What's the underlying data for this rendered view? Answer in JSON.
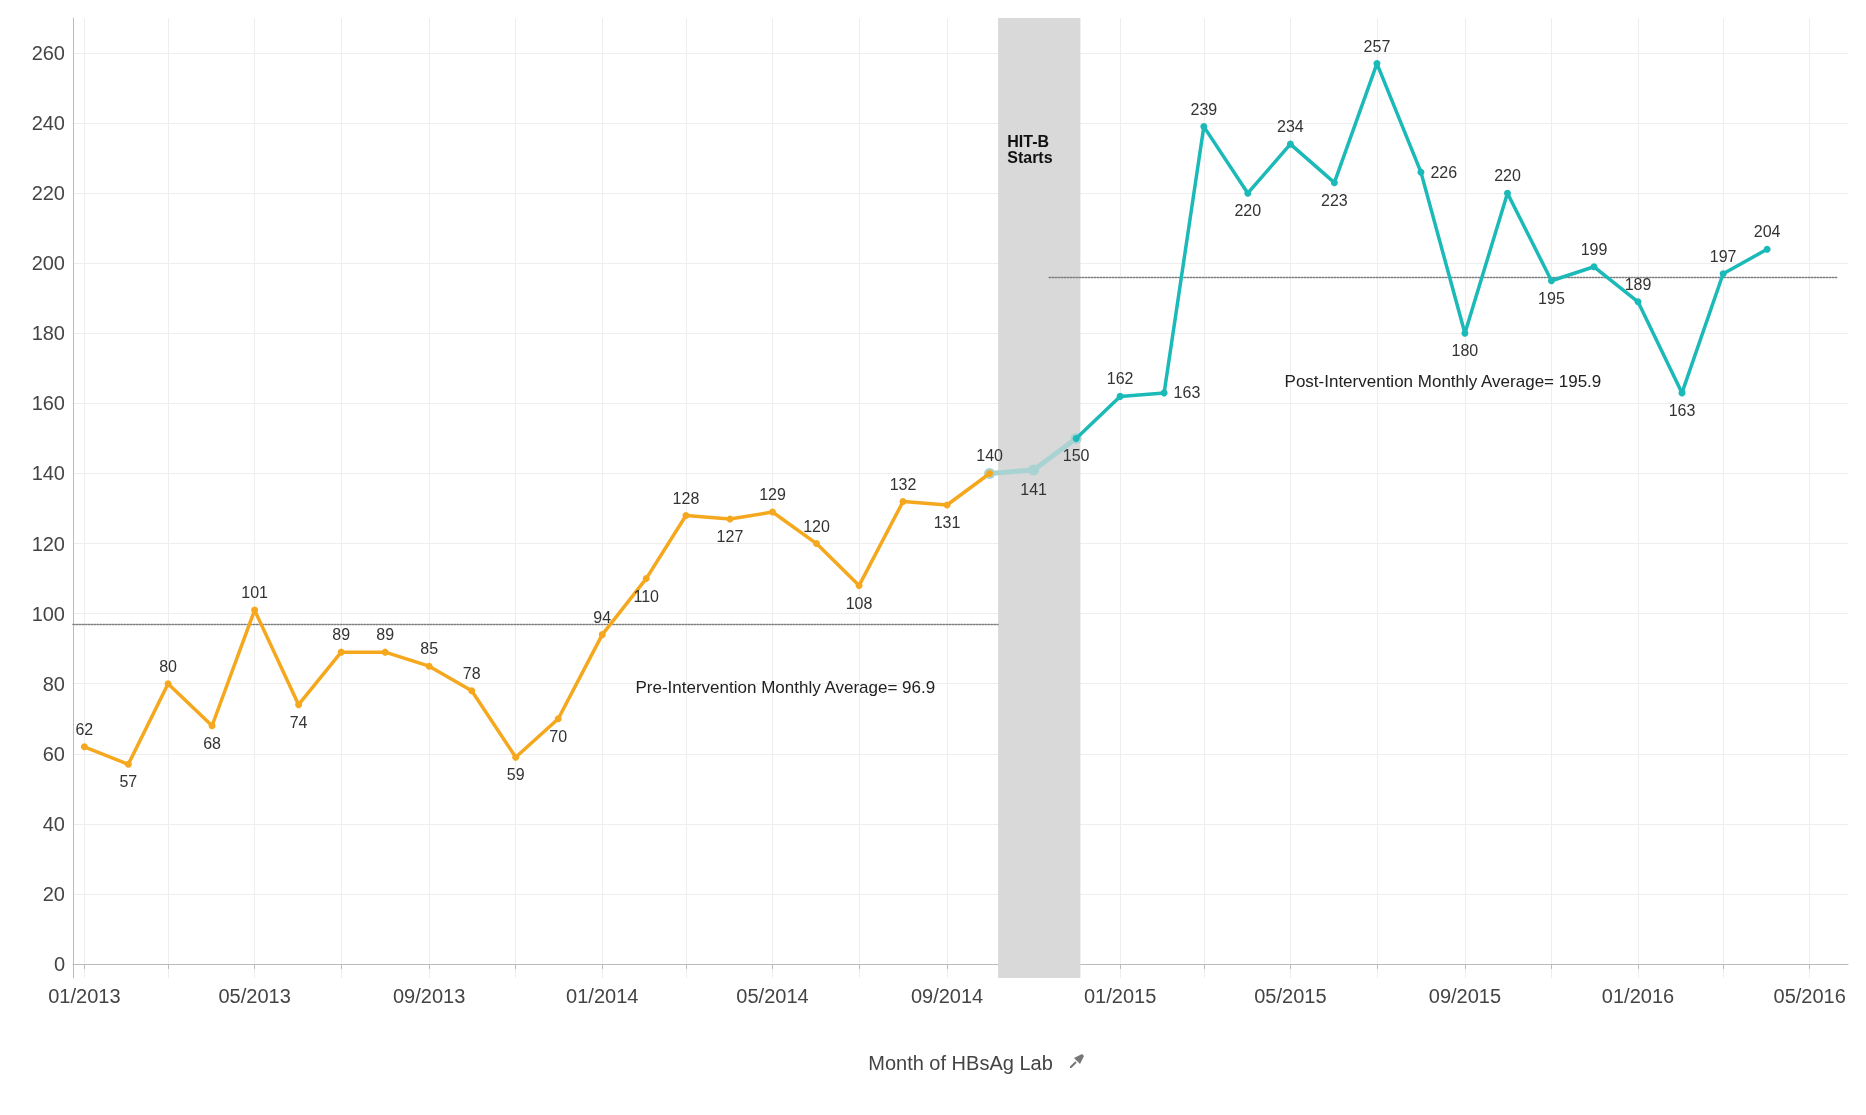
{
  "chart_data": {
    "type": "line",
    "xlabel": "Month of HBsAg Lab",
    "xlim": [
      "2012-12-24",
      "2016-05-28"
    ],
    "ylim": [
      -4,
      270
    ],
    "xticks": [
      {
        "value": "2013-01",
        "label": "01/2013"
      },
      {
        "value": "2013-03",
        "label": null
      },
      {
        "value": "2013-05",
        "label": "05/2013"
      },
      {
        "value": "2013-07",
        "label": null
      },
      {
        "value": "2013-09",
        "label": "09/2013"
      },
      {
        "value": "2013-11",
        "label": null
      },
      {
        "value": "2014-01",
        "label": "01/2014"
      },
      {
        "value": "2014-03",
        "label": null
      },
      {
        "value": "2014-05",
        "label": "05/2014"
      },
      {
        "value": "2014-07",
        "label": null
      },
      {
        "value": "2014-09",
        "label": "09/2014"
      },
      {
        "value": "2014-11",
        "label": null
      },
      {
        "value": "2015-01",
        "label": "01/2015"
      },
      {
        "value": "2015-03",
        "label": null
      },
      {
        "value": "2015-05",
        "label": "05/2015"
      },
      {
        "value": "2015-07",
        "label": null
      },
      {
        "value": "2015-09",
        "label": "09/2015"
      },
      {
        "value": "2015-11",
        "label": null
      },
      {
        "value": "2016-01",
        "label": "01/2016"
      },
      {
        "value": "2016-03",
        "label": null
      },
      {
        "value": "2016-05",
        "label": "05/2016"
      }
    ],
    "yticks": [
      0,
      20,
      40,
      60,
      80,
      100,
      120,
      140,
      160,
      180,
      200,
      220,
      240,
      260
    ],
    "grid": true,
    "marker": "circle",
    "bands": [
      {
        "axis": "x",
        "from": "2014-10-07",
        "to": "2014-12-04",
        "label": "HIT-B\nStarts",
        "color": "#d9d9d9"
      }
    ],
    "annotations": [
      "Pre-Intervention Monthly Average= 96.9",
      "Post-Intervention Monthly Average= 195.9"
    ],
    "series": [
      {
        "color": "#f5a81d",
        "x": [
          "2013-01",
          "2013-02",
          "2013-03",
          "2013-04",
          "2013-05",
          "2013-06",
          "2013-07",
          "2013-08",
          "2013-09",
          "2013-10",
          "2013-11",
          "2013-12",
          "2014-01",
          "2014-02",
          "2014-03",
          "2014-04",
          "2014-05",
          "2014-06",
          "2014-07",
          "2014-08",
          "2014-09",
          "2014-10"
        ],
        "values": [
          62,
          57,
          80,
          68,
          101,
          74,
          89,
          89,
          85,
          78,
          59,
          70,
          94,
          110,
          128,
          127,
          129,
          120,
          108,
          132,
          131,
          140
        ],
        "value_labels": [
          "62",
          "57",
          "80",
          "68",
          "101",
          "74",
          "89",
          "89",
          "85",
          "78",
          "59",
          "70",
          "94",
          "110",
          "128",
          "127",
          "129",
          "120",
          "108",
          "132",
          "131",
          "140"
        ]
      },
      {
        "color": "#a9d3d2",
        "x": [
          "2014-10",
          "2014-11",
          "2014-12"
        ],
        "values": [
          140,
          141,
          150
        ],
        "value_labels": [
          null,
          "141",
          null
        ]
      },
      {
        "color": "#1bb9b7",
        "x": [
          "2014-12",
          "2015-01",
          "2015-02",
          "2015-03",
          "2015-04",
          "2015-05",
          "2015-06",
          "2015-07",
          "2015-08",
          "2015-09",
          "2015-10",
          "2015-11",
          "2015-12",
          "2016-01",
          "2016-02",
          "2016-03",
          "2016-04"
        ],
        "values": [
          150,
          162,
          163,
          239,
          220,
          234,
          223,
          257,
          226,
          180,
          220,
          195,
          199,
          189,
          163,
          197,
          204
        ],
        "value_labels": [
          "150",
          "162",
          "163",
          "239",
          "220",
          "234",
          "223",
          "257",
          "226",
          "180",
          "220",
          "195",
          "199",
          "189",
          "163",
          "197",
          "204"
        ]
      },
      {
        "type": "line",
        "color": "#808080",
        "line_style": "dotted",
        "marker": "none",
        "x": [
          "2012-12-24",
          "2014-10-07"
        ],
        "values": [
          96.9,
          96.9
        ]
      },
      {
        "type": "line",
        "color": "#808080",
        "line_style": "dotted",
        "marker": "none",
        "x": [
          "2014-11-12",
          "2016-05-20"
        ],
        "values": [
          195.9,
          195.9
        ]
      }
    ]
  }
}
